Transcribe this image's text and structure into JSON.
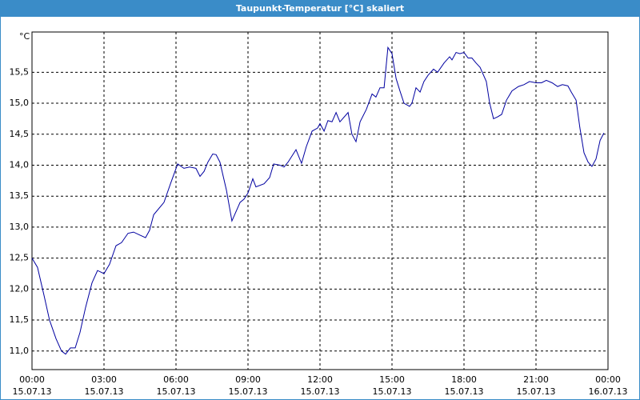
{
  "chart_data": {
    "type": "line",
    "title": "Taupunkt-Temperatur [°C] skaliert",
    "y_label": "°C",
    "x": [
      0,
      0.23,
      0.5,
      0.73,
      1,
      1.23,
      1.4,
      1.6,
      1.8,
      2,
      2.23,
      2.5,
      2.73,
      3,
      3.23,
      3.5,
      3.73,
      4,
      4.23,
      4.5,
      4.73,
      4.9,
      5.07,
      5.5,
      5.77,
      6.07,
      6.33,
      6.57,
      6.83,
      7,
      7.17,
      7.33,
      7.53,
      7.67,
      7.83,
      8.1,
      8.33,
      8.67,
      8.83,
      9,
      9.2,
      9.33,
      9.67,
      9.9,
      10.07,
      10.33,
      10.5,
      10.67,
      11,
      11.23,
      11.43,
      11.67,
      11.9,
      12,
      12.17,
      12.33,
      12.5,
      12.67,
      12.83,
      13.17,
      13.33,
      13.5,
      13.67,
      13.93,
      14.17,
      14.33,
      14.5,
      14.67,
      14.83,
      15,
      15.17,
      15.33,
      15.5,
      15.73,
      15.83,
      16,
      16.17,
      16.33,
      16.5,
      16.73,
      16.9,
      17.17,
      17.4,
      17.5,
      17.67,
      17.83,
      18,
      18.17,
      18.33,
      18.5,
      18.67,
      18.93,
      19.07,
      19.23,
      19.4,
      19.57,
      19.77,
      20,
      20.27,
      20.5,
      20.73,
      21,
      21.23,
      21.43,
      21.67,
      21.9,
      22.1,
      22.33,
      22.47,
      22.67,
      22.83,
      23,
      23.17,
      23.33,
      23.5,
      23.67,
      23.83
    ],
    "series": [
      {
        "color": "#0000a0",
        "values": [
          12.5,
          12.35,
          11.9,
          11.5,
          11.2,
          11.0,
          10.95,
          11.05,
          11.05,
          11.3,
          11.7,
          12.1,
          12.3,
          12.25,
          12.4,
          12.7,
          12.75,
          12.9,
          12.92,
          12.87,
          12.83,
          12.95,
          13.2,
          13.4,
          13.7,
          14.02,
          13.95,
          13.97,
          13.95,
          13.82,
          13.9,
          14.05,
          14.18,
          14.17,
          14.05,
          13.6,
          13.1,
          13.4,
          13.45,
          13.55,
          13.78,
          13.65,
          13.7,
          13.8,
          14.02,
          14.0,
          13.97,
          14.05,
          14.25,
          14.03,
          14.3,
          14.55,
          14.6,
          14.67,
          14.55,
          14.72,
          14.7,
          14.85,
          14.7,
          14.85,
          14.5,
          14.38,
          14.7,
          14.9,
          15.15,
          15.1,
          15.25,
          15.25,
          15.9,
          15.8,
          15.4,
          15.2,
          15.0,
          14.95,
          15.0,
          15.25,
          15.18,
          15.35,
          15.45,
          15.55,
          15.5,
          15.65,
          15.75,
          15.7,
          15.82,
          15.8,
          15.82,
          15.73,
          15.73,
          15.65,
          15.58,
          15.35,
          15.0,
          14.75,
          14.78,
          14.82,
          15.05,
          15.2,
          15.27,
          15.3,
          15.35,
          15.33,
          15.33,
          15.37,
          15.33,
          15.27,
          15.3,
          15.28,
          15.18,
          15.05,
          14.6,
          14.2,
          14.05,
          13.98,
          14.1,
          14.4,
          14.52
        ]
      }
    ],
    "xlim": [
      0,
      24
    ],
    "xticks": [
      {
        "value": 0,
        "label": "00:00\n15.07.13"
      },
      {
        "value": 3,
        "label": "03:00\n15.07.13"
      },
      {
        "value": 6,
        "label": "06:00\n15.07.13"
      },
      {
        "value": 9,
        "label": "09:00\n15.07.13"
      },
      {
        "value": 12,
        "label": "12:00\n15.07.13"
      },
      {
        "value": 15,
        "label": "15:00\n15.07.13"
      },
      {
        "value": 18,
        "label": "18:00\n15.07.13"
      },
      {
        "value": 21,
        "label": "21:00\n15.07.13"
      },
      {
        "value": 24,
        "label": "00:00\n16.07.13"
      }
    ],
    "ylim": [
      10.7,
      16.15
    ],
    "yticks": [
      {
        "value": 11,
        "label": "11,0"
      },
      {
        "value": 11.5,
        "label": "11,5"
      },
      {
        "value": 12,
        "label": "12,0"
      },
      {
        "value": 12.5,
        "label": "12,5"
      },
      {
        "value": 13,
        "label": "13,0"
      },
      {
        "value": 13.5,
        "label": "13,5"
      },
      {
        "value": 14,
        "label": "14,0"
      },
      {
        "value": 14.5,
        "label": "14,5"
      },
      {
        "value": 15,
        "label": "15,0"
      },
      {
        "value": 15.5,
        "label": "15,5"
      }
    ],
    "grid": true
  }
}
